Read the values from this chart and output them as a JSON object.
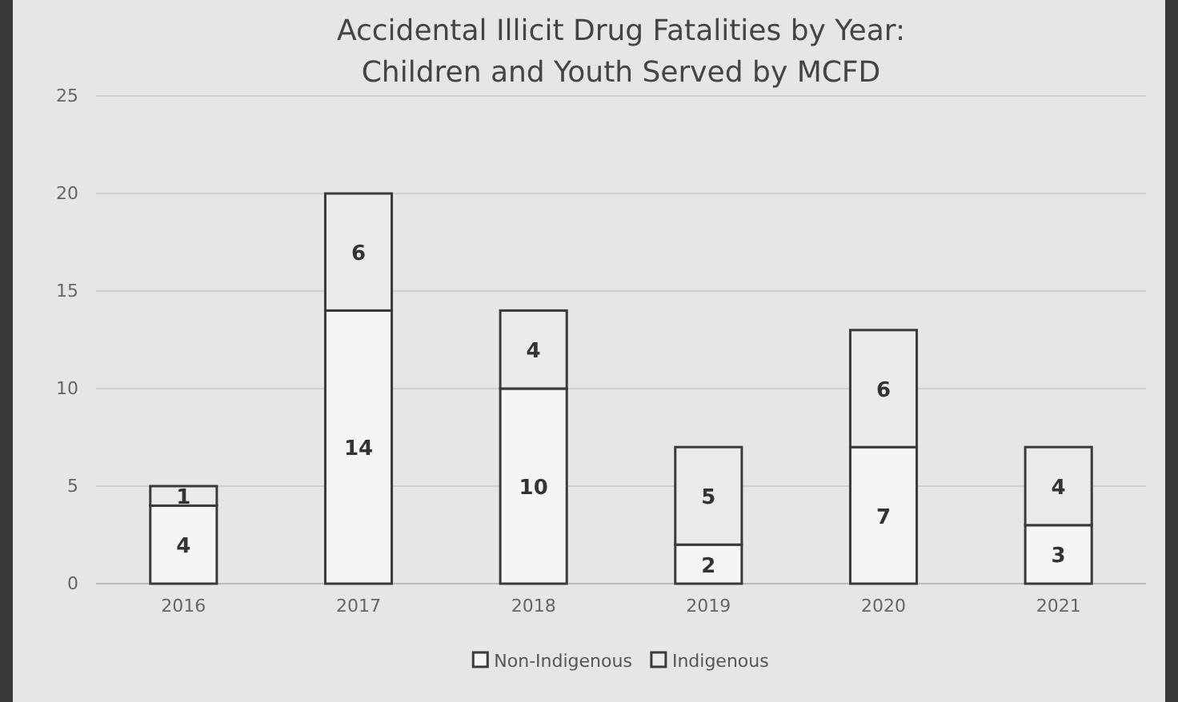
{
  "chart_data": {
    "type": "bar",
    "title": "Accidental Illicit Drug Fatalities by Year:\nChildren and Youth Served by MCFD",
    "categories": [
      "2016",
      "2017",
      "2018",
      "2019",
      "2020",
      "2021"
    ],
    "series": [
      {
        "name": "Non-Indigenous",
        "color": "#f5f5f5",
        "values": [
          4,
          14,
          10,
          2,
          7,
          3
        ]
      },
      {
        "name": "Indigenous",
        "color": "#ebebeb",
        "values": [
          1,
          6,
          4,
          5,
          6,
          4
        ]
      }
    ],
    "stacked": true,
    "ylim": [
      0,
      25
    ],
    "yticks": [
      0,
      5,
      10,
      15,
      20,
      25
    ],
    "grid": "y",
    "legend": "bottom",
    "data_labels": true
  }
}
